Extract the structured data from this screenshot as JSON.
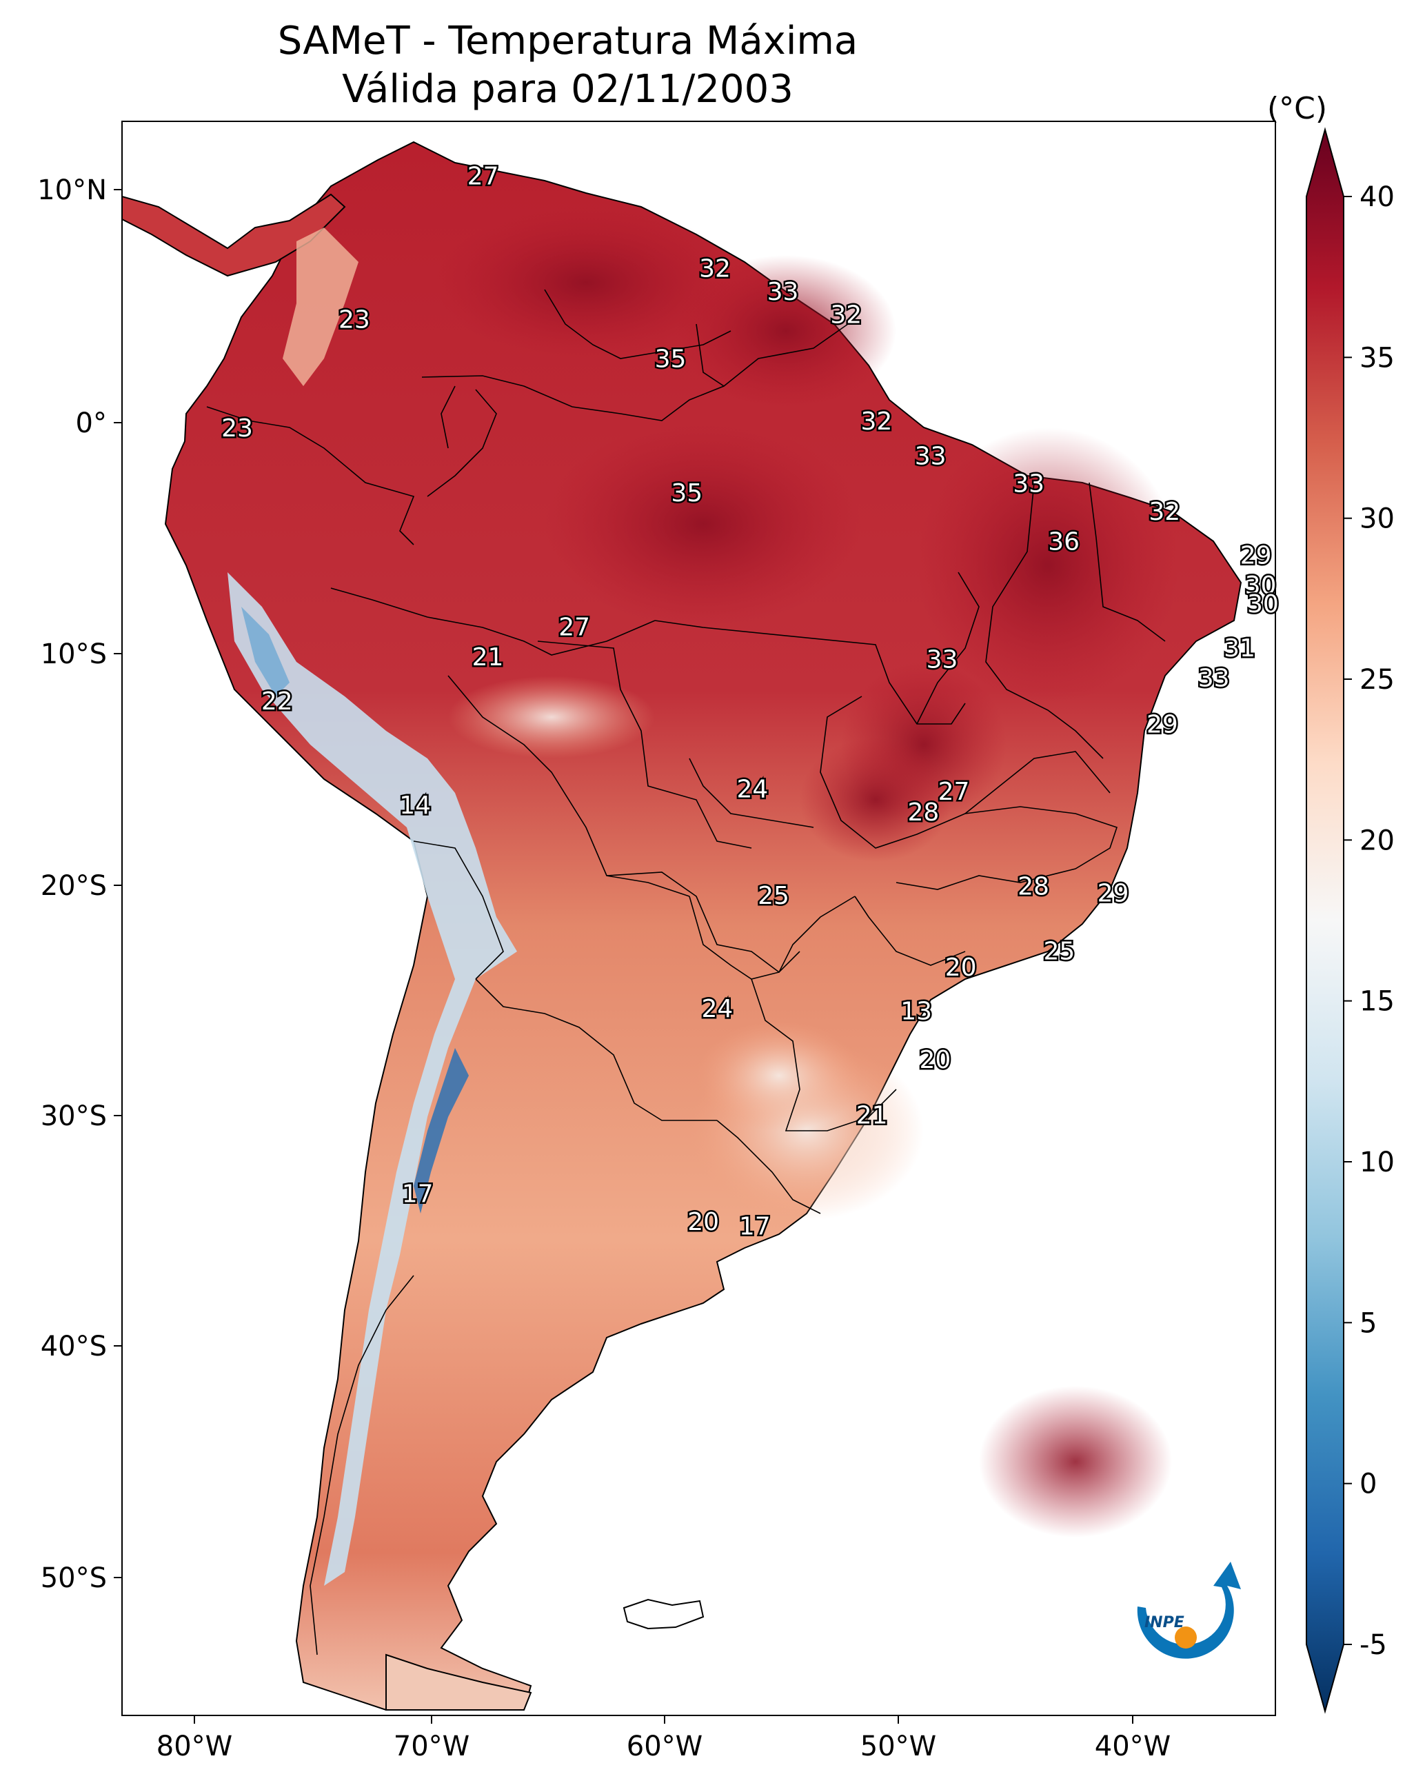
{
  "title": "SAMeT - Temperatura Máxima",
  "subtitle": "Válida para 02/11/2003",
  "colorbar": {
    "unit": "(°C)",
    "min": -5,
    "max": 40,
    "ticks": [
      "40",
      "35",
      "30",
      "25",
      "20",
      "15",
      "10",
      "5",
      "0",
      "-5"
    ],
    "colors": [
      "#053061",
      "#2166ac",
      "#4393c3",
      "#92c5de",
      "#d1e5f0",
      "#f7f7f7",
      "#fddbc7",
      "#f4a582",
      "#d6604d",
      "#b2182b",
      "#67001f"
    ]
  },
  "axes": {
    "lon_ticks": [
      "80°W",
      "70°W",
      "60°W",
      "50°W",
      "40°W"
    ],
    "lat_ticks": [
      "10°N",
      "0°",
      "10°S",
      "20°S",
      "30°S",
      "40°S",
      "50°S"
    ]
  },
  "logo": {
    "text": "INPE"
  },
  "station_labels": [
    {
      "lon": -67.8,
      "lat": 10.6,
      "value": "27"
    },
    {
      "lon": -73.3,
      "lat": 4.4,
      "value": "23"
    },
    {
      "lon": -57.9,
      "lat": 6.6,
      "value": "32"
    },
    {
      "lon": -55.0,
      "lat": 5.6,
      "value": "33"
    },
    {
      "lon": -52.3,
      "lat": 4.6,
      "value": "32"
    },
    {
      "lon": -59.8,
      "lat": 2.7,
      "value": "35"
    },
    {
      "lon": -51.0,
      "lat": 0.0,
      "value": "32"
    },
    {
      "lon": -78.3,
      "lat": -0.3,
      "value": "23"
    },
    {
      "lon": -48.7,
      "lat": -1.5,
      "value": "33"
    },
    {
      "lon": -44.5,
      "lat": -2.7,
      "value": "33"
    },
    {
      "lon": -59.1,
      "lat": -3.1,
      "value": "35"
    },
    {
      "lon": -38.7,
      "lat": -3.9,
      "value": "32"
    },
    {
      "lon": -43.0,
      "lat": -5.2,
      "value": "36"
    },
    {
      "lon": -34.8,
      "lat": -5.8,
      "value": "29"
    },
    {
      "lon": -34.6,
      "lat": -7.1,
      "value": "30"
    },
    {
      "lon": -34.5,
      "lat": -7.9,
      "value": "30"
    },
    {
      "lon": -63.9,
      "lat": -8.9,
      "value": "27"
    },
    {
      "lon": -67.6,
      "lat": -10.2,
      "value": "21"
    },
    {
      "lon": -35.5,
      "lat": -9.8,
      "value": "31"
    },
    {
      "lon": -48.2,
      "lat": -10.3,
      "value": "33"
    },
    {
      "lon": -36.6,
      "lat": -11.1,
      "value": "33"
    },
    {
      "lon": -76.6,
      "lat": -12.1,
      "value": "22"
    },
    {
      "lon": -38.8,
      "lat": -13.1,
      "value": "29"
    },
    {
      "lon": -70.7,
      "lat": -16.6,
      "value": "14"
    },
    {
      "lon": -56.3,
      "lat": -15.9,
      "value": "24"
    },
    {
      "lon": -47.7,
      "lat": -16.0,
      "value": "27"
    },
    {
      "lon": -49.0,
      "lat": -16.9,
      "value": "28"
    },
    {
      "lon": -44.3,
      "lat": -20.1,
      "value": "28"
    },
    {
      "lon": -40.9,
      "lat": -20.4,
      "value": "29"
    },
    {
      "lon": -55.4,
      "lat": -20.5,
      "value": "25"
    },
    {
      "lon": -43.2,
      "lat": -22.9,
      "value": "25"
    },
    {
      "lon": -47.4,
      "lat": -23.6,
      "value": "20"
    },
    {
      "lon": -57.8,
      "lat": -25.4,
      "value": "24"
    },
    {
      "lon": -49.3,
      "lat": -25.5,
      "value": "13"
    },
    {
      "lon": -48.5,
      "lat": -27.6,
      "value": "20"
    },
    {
      "lon": -51.2,
      "lat": -30.0,
      "value": "21"
    },
    {
      "lon": -70.6,
      "lat": -33.4,
      "value": "17"
    },
    {
      "lon": -58.4,
      "lat": -34.6,
      "value": "20"
    },
    {
      "lon": -56.2,
      "lat": -34.8,
      "value": "17"
    }
  ]
}
